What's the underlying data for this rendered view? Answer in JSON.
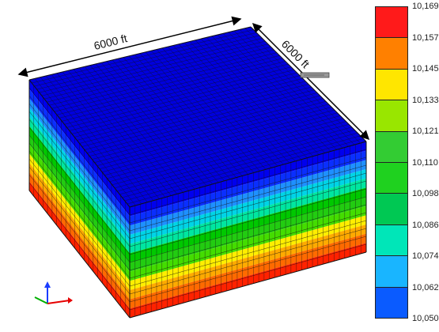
{
  "dimensions": {
    "width_label": "6000 ft",
    "depth_label": "6000 ft"
  },
  "colorbar": {
    "labels": [
      "10,169",
      "10,157",
      "10,145",
      "10,133",
      "10,121",
      "10,110",
      "10,098",
      "10,086",
      "10,074",
      "10,062",
      "10,050"
    ],
    "colors": [
      "#ff1a1a",
      "#ff8000",
      "#ffe600",
      "#99e600",
      "#33cc33",
      "#1fd11f",
      "#00c853",
      "#00e6b8",
      "#19b5ff",
      "#0a5bff",
      "#0000e6"
    ]
  },
  "model": {
    "top_color": "#0000dd",
    "side_layer_colors": [
      "#0000ee",
      "#0a2fff",
      "#1e90ff",
      "#00d4e6",
      "#00e6a0",
      "#00c800",
      "#22cc11",
      "#44dd00",
      "#ffee00",
      "#ffaa00",
      "#ff6a00",
      "#ff2200"
    ]
  }
}
